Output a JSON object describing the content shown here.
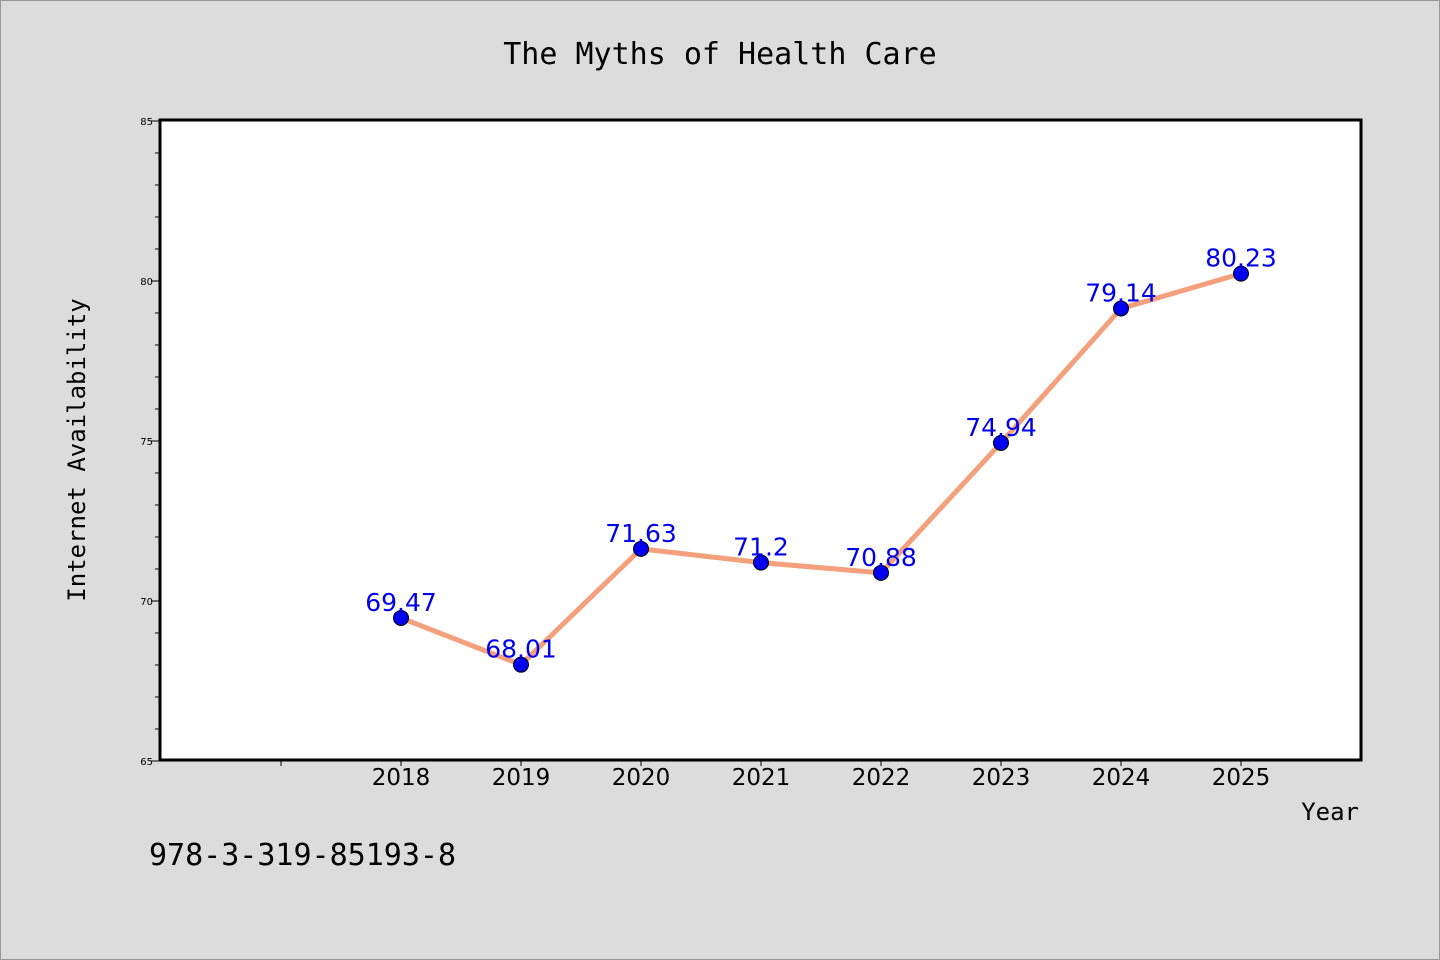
{
  "chart_data": {
    "type": "line",
    "title": "The Myths of Health Care",
    "xlabel": "Year",
    "ylabel": "Internet Availability",
    "x": [
      "2018",
      "2019",
      "2020",
      "2021",
      "2022",
      "2023",
      "2024",
      "2025"
    ],
    "values": [
      69.47,
      68.01,
      71.63,
      71.2,
      70.88,
      74.94,
      79.14,
      80.23
    ],
    "data_labels": [
      "69.47",
      "68.01",
      "71.63",
      "71.2",
      "70.88",
      "74.94",
      "79.14",
      "80.23"
    ],
    "ylim": [
      65,
      85
    ],
    "y_major_ticks": [
      65,
      70,
      75,
      80,
      85
    ],
    "y_tick_labels": [
      "65",
      "70",
      "75",
      "80",
      "85"
    ],
    "y_minor_step": 1,
    "x_slot_range": [
      -2,
      8
    ],
    "grid": false,
    "legend": "none",
    "line_color": "#f5a07c",
    "marker_color": "#0000ee",
    "label_color": "#0000ee",
    "background_color": "#dcdcdc",
    "plot_background_color": "#ffffff"
  },
  "footer": {
    "isbn": "978-3-319-85193-8"
  }
}
